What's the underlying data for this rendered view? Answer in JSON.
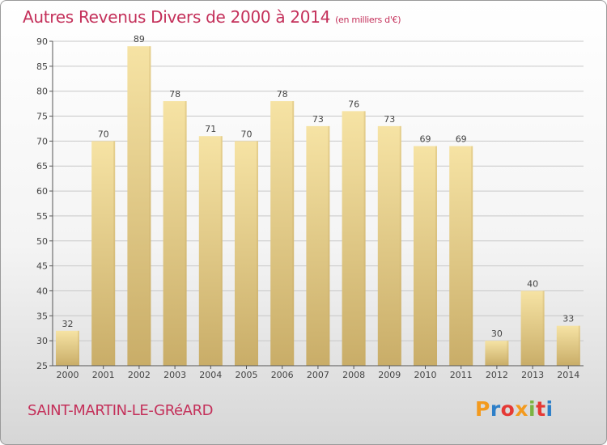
{
  "title": "Autres Revenus Divers de 2000 à 2014",
  "subtitle": "(en milliers d'€)",
  "commune": "SAINT-MARTIN-LE-GRéARD",
  "logo": {
    "text": "Proxiti",
    "letter_colors": [
      "#f39a1e",
      "#2d7fc8",
      "#e53935",
      "#f39a1e",
      "#7cb342",
      "#e53935",
      "#2d7fc8"
    ]
  },
  "colors": {
    "title": "#c4305a",
    "bar_light": "#f6e3a4",
    "bar_dark": "#c9ad68",
    "grid": "#c8c8c8",
    "axis": "#555555"
  },
  "chart_data": {
    "type": "bar",
    "categories": [
      "2000",
      "2001",
      "2002",
      "2003",
      "2004",
      "2005",
      "2006",
      "2007",
      "2008",
      "2009",
      "2010",
      "2011",
      "2012",
      "2013",
      "2014"
    ],
    "values": [
      32,
      70,
      89,
      78,
      71,
      70,
      78,
      73,
      76,
      73,
      69,
      69,
      30,
      40,
      33
    ],
    "ylim": [
      25,
      90
    ],
    "yticks": [
      25,
      30,
      35,
      40,
      45,
      50,
      55,
      60,
      65,
      70,
      75,
      80,
      85,
      90
    ],
    "grid": "horizontal",
    "legend": "none"
  }
}
